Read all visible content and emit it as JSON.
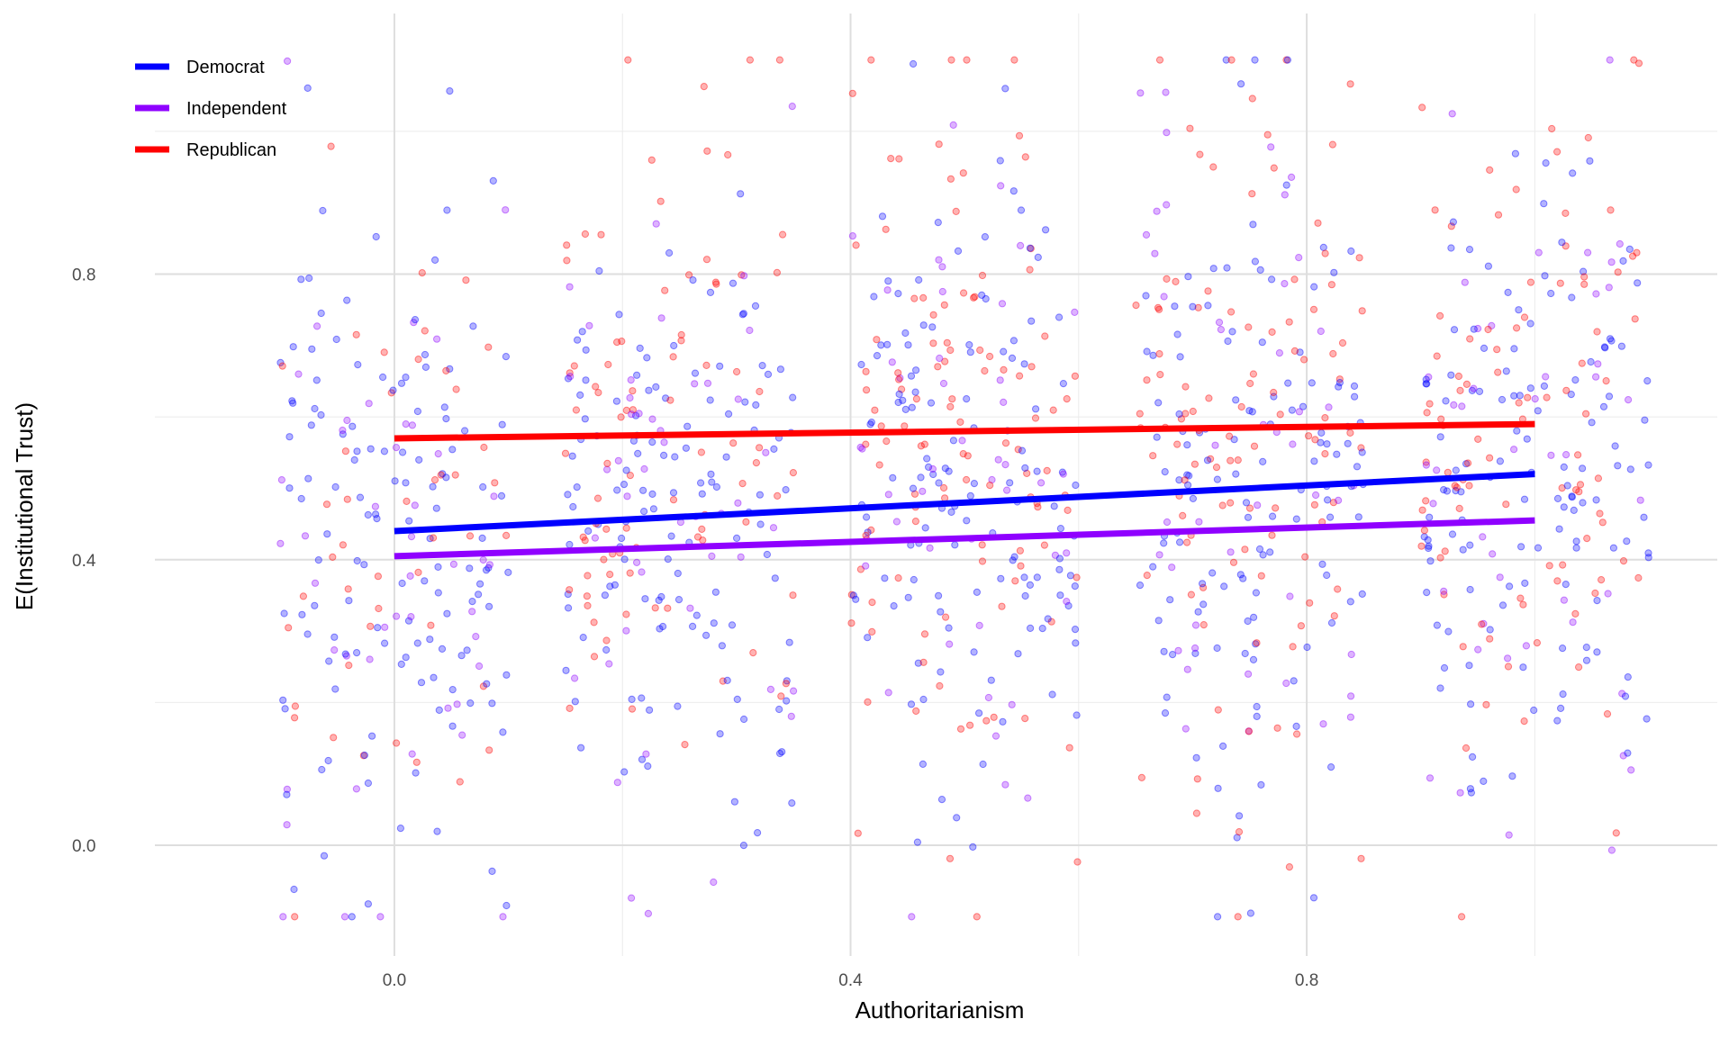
{
  "chart_data": {
    "type": "scatter",
    "title": "",
    "xlabel": "Authoritarianism",
    "ylabel": "E(Institutional Trust)",
    "xlim": [
      -0.21,
      1.16
    ],
    "ylim": [
      -0.155,
      1.165
    ],
    "x_ticks": [
      0.0,
      0.4,
      0.8
    ],
    "x_tick_labels": [
      "0.0",
      "0.4",
      "0.8"
    ],
    "y_ticks": [
      0.0,
      0.4,
      0.8
    ],
    "y_tick_labels": [
      "0.0",
      "0.4",
      "0.8"
    ],
    "grid": true,
    "legend_position": "top-left",
    "x_levels": [
      0.0,
      0.25,
      0.5,
      0.75,
      1.0
    ],
    "jitter_width": 0.1,
    "series": [
      {
        "name": "Democrat",
        "color": "#0000ff",
        "fit_line": {
          "x": [
            0.0,
            1.0
          ],
          "y": [
            0.44,
            0.52
          ]
        },
        "level_means": [
          0.45,
          0.46,
          0.5,
          0.51,
          0.52
        ],
        "level_spread": [
          0.24,
          0.22,
          0.22,
          0.24,
          0.24
        ],
        "points_per_level": 130
      },
      {
        "name": "Independent",
        "color": "#8f00ff",
        "fit_line": {
          "x": [
            0.0,
            1.0
          ],
          "y": [
            0.405,
            0.455
          ]
        },
        "level_means": [
          0.44,
          0.46,
          0.48,
          0.5,
          0.5
        ],
        "level_spread": [
          0.26,
          0.26,
          0.26,
          0.26,
          0.26
        ],
        "points_per_level": 45
      },
      {
        "name": "Republican",
        "color": "#ff0000",
        "fit_line": {
          "x": [
            0.0,
            1.0
          ],
          "y": [
            0.57,
            0.59
          ]
        },
        "level_means": [
          0.52,
          0.58,
          0.57,
          0.58,
          0.57
        ],
        "level_spread": [
          0.24,
          0.24,
          0.26,
          0.26,
          0.25
        ],
        "points_per_level": [
          45,
          85,
          110,
          105,
          95
        ]
      }
    ]
  }
}
